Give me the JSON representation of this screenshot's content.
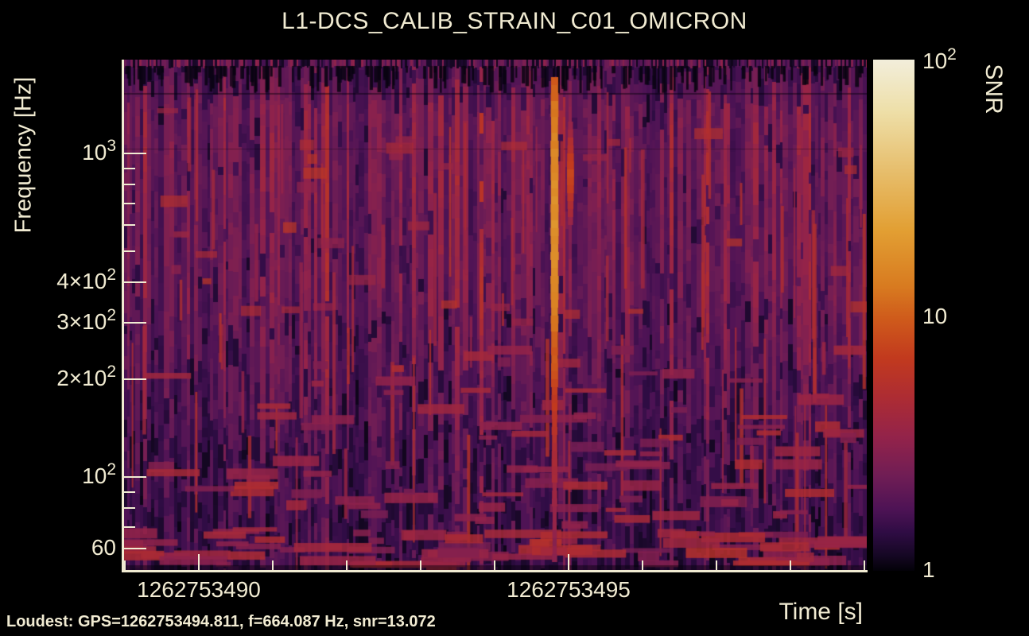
{
  "figure": {
    "title": "L1-DCS_CALIB_STRAIN_C01_OMICRON",
    "footer": "Loudest: GPS=1262753494.811, f=664.087 Hz, snr=13.072",
    "background": "#000000",
    "text_color": "#f1ebd2"
  },
  "chart_data": {
    "type": "heatmap",
    "title": "L1-DCS_CALIB_STRAIN_C01_OMICRON",
    "xlabel": "Time [s]",
    "ylabel": "Frequency [Hz]",
    "colorbar_label": "SNR",
    "x_axis": {
      "scale": "linear",
      "lim": [
        1262753489,
        1262753499
      ],
      "major_ticks": [
        {
          "value": 1262753490,
          "label": "1262753490"
        },
        {
          "value": 1262753495,
          "label": "1262753495"
        }
      ],
      "minor_ticks": [
        1262753489,
        1262753491,
        1262753492,
        1262753493,
        1262753494,
        1262753496,
        1262753497,
        1262753498,
        1262753499
      ]
    },
    "y_axis": {
      "scale": "log",
      "lim": [
        51,
        1950
      ],
      "labeled_ticks": [
        {
          "value": 1000,
          "mantissa": "10",
          "exponent": "3"
        },
        {
          "value": 400,
          "mantissa": "4×10",
          "exponent": "2"
        },
        {
          "value": 300,
          "mantissa": "3×10",
          "exponent": "2"
        },
        {
          "value": 200,
          "mantissa": "2×10",
          "exponent": "2"
        },
        {
          "value": 100,
          "mantissa": "10",
          "exponent": "2"
        },
        {
          "value": 60,
          "mantissa": "60",
          "exponent": ""
        }
      ],
      "minor_ticks": [
        900,
        800,
        700,
        600,
        500,
        90,
        80,
        70
      ]
    },
    "colorbar": {
      "scale": "log",
      "lim": [
        1,
        100
      ],
      "labeled_ticks": [
        {
          "value": 100,
          "mantissa": "10",
          "exponent": "2"
        },
        {
          "value": 10,
          "mantissa": "10",
          "exponent": ""
        },
        {
          "value": 1,
          "mantissa": "1",
          "exponent": ""
        }
      ],
      "minor_ticks": [
        2,
        3,
        4,
        5,
        6,
        7,
        8,
        9,
        20,
        30,
        40,
        50,
        60,
        70,
        80,
        90
      ],
      "stops": [
        {
          "t": 0.0,
          "color": "#030108"
        },
        {
          "t": 0.028,
          "color": "#140722"
        },
        {
          "t": 0.075,
          "color": "#2f0c44"
        },
        {
          "t": 0.121,
          "color": "#4e1355"
        },
        {
          "t": 0.184,
          "color": "#6f1d55"
        },
        {
          "t": 0.261,
          "color": "#93234a"
        },
        {
          "t": 0.339,
          "color": "#ad2c33"
        },
        {
          "t": 0.417,
          "color": "#c23a1e"
        },
        {
          "t": 0.494,
          "color": "#cf5b1b"
        },
        {
          "t": 0.557,
          "color": "#d87b20"
        },
        {
          "t": 0.666,
          "color": "#e29f33"
        },
        {
          "t": 0.79,
          "color": "#e7c070"
        },
        {
          "t": 0.899,
          "color": "#eedfa8"
        },
        {
          "t": 1.0,
          "color": "#f2eedb"
        }
      ]
    },
    "loudest": {
      "gps": 1262753494.811,
      "frequency_hz": 664.087,
      "snr": 13.072
    },
    "visible_features": [
      "dense vertical purple/magenta noise streaks across full band",
      "bright orange vertical glitch near GPS 1262753494.8 peaking around 660 Hz",
      "darker speckled band above ~1.3 kHz",
      "cross-hatched blobs below ~150 Hz with brighter horizontal segments near 60 Hz"
    ]
  }
}
